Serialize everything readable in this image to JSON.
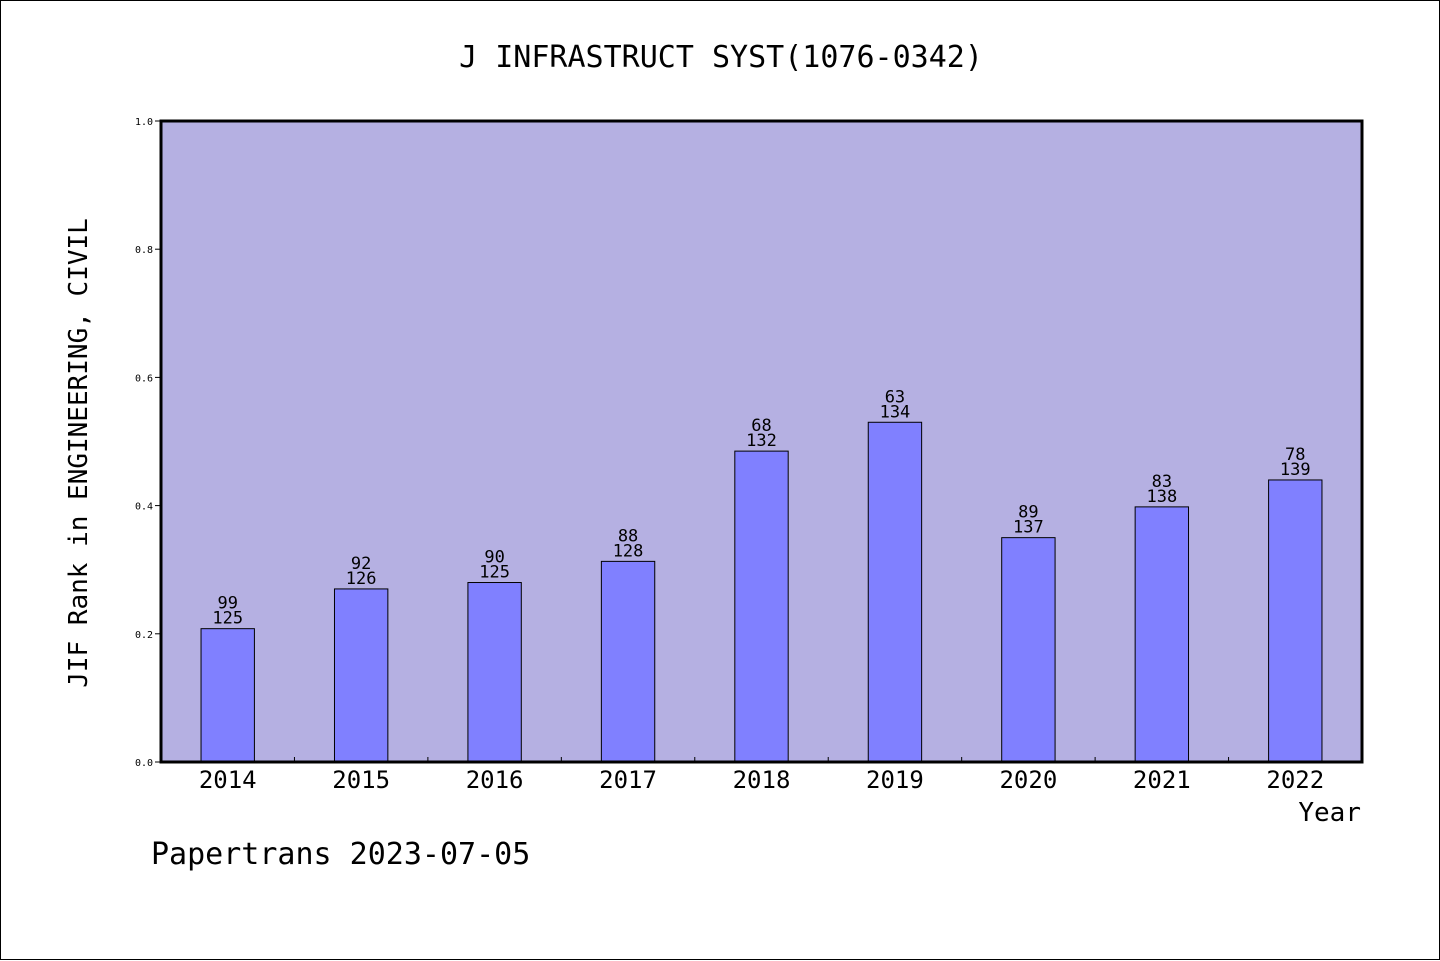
{
  "chart_data": {
    "type": "bar",
    "title": "J INFRASTRUCT SYST(1076-0342)",
    "xlabel": "Year",
    "ylabel": "JIF Rank in ENGINEERING, CIVIL",
    "categories": [
      "2014",
      "2015",
      "2016",
      "2017",
      "2018",
      "2019",
      "2020",
      "2021",
      "2022"
    ],
    "values": [
      0.208,
      0.27,
      0.28,
      0.313,
      0.485,
      0.53,
      0.35,
      0.398,
      0.44
    ],
    "rank": [
      "99",
      "92",
      "90",
      "88",
      "68",
      "63",
      "89",
      "83",
      "78"
    ],
    "total": [
      "125",
      "126",
      "125",
      "128",
      "132",
      "134",
      "137",
      "138",
      "139"
    ],
    "ylim": [
      0,
      1.0
    ],
    "yticks": [
      "0.0",
      "0.2",
      "0.4",
      "0.6",
      "0.8",
      "1.0"
    ],
    "grid": false,
    "colors": {
      "plot_background": "#b5b0e2",
      "bar_fill": "#8080ff",
      "bar_stroke": "#000000"
    }
  },
  "footer": {
    "text": "Papertrans 2023-07-05"
  }
}
